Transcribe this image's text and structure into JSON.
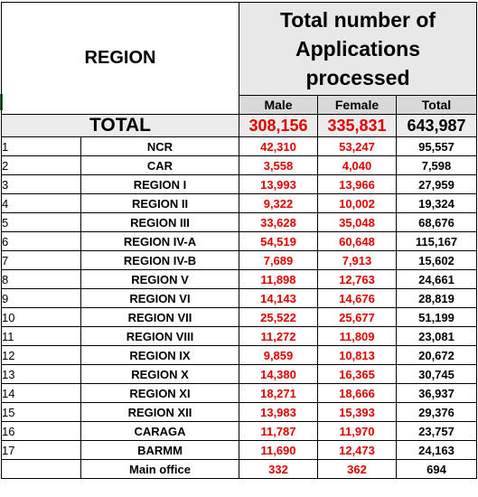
{
  "header": {
    "region_label": "REGION",
    "total_title_line1": "Total number of",
    "total_title_line2": "Applications",
    "total_title_line3": "processed",
    "col_male": "Male",
    "col_female": "Female",
    "col_total": "Total"
  },
  "totals": {
    "label": "TOTAL",
    "male": "308,156",
    "female": "335,831",
    "total": "643,987"
  },
  "rows": [
    {
      "no": "1",
      "region": "NCR",
      "male": "42,310",
      "female": "53,247",
      "total": "95,557"
    },
    {
      "no": "2",
      "region": "CAR",
      "male": "3,558",
      "female": "4,040",
      "total": "7,598"
    },
    {
      "no": "3",
      "region": "REGION I",
      "male": "13,993",
      "female": "13,966",
      "total": "27,959"
    },
    {
      "no": "4",
      "region": "REGION II",
      "male": "9,322",
      "female": "10,002",
      "total": "19,324"
    },
    {
      "no": "5",
      "region": "REGION III",
      "male": "33,628",
      "female": "35,048",
      "total": "68,676"
    },
    {
      "no": "6",
      "region": "REGION IV-A",
      "male": "54,519",
      "female": "60,648",
      "total": "115,167"
    },
    {
      "no": "7",
      "region": "REGION IV-B",
      "male": "7,689",
      "female": "7,913",
      "total": "15,602"
    },
    {
      "no": "8",
      "region": "REGION V",
      "male": "11,898",
      "female": "12,763",
      "total": "24,661"
    },
    {
      "no": "9",
      "region": "REGION VI",
      "male": "14,143",
      "female": "14,676",
      "total": "28,819"
    },
    {
      "no": "10",
      "region": "REGION VII",
      "male": "25,522",
      "female": "25,677",
      "total": "51,199"
    },
    {
      "no": "11",
      "region": "REGION VIII",
      "male": "11,272",
      "female": "11,809",
      "total": "23,081"
    },
    {
      "no": "12",
      "region": "REGION IX",
      "male": "9,859",
      "female": "10,813",
      "total": "20,672"
    },
    {
      "no": "13",
      "region": "REGION X",
      "male": "14,380",
      "female": "16,365",
      "total": "30,745"
    },
    {
      "no": "14",
      "region": "REGION XI",
      "male": "18,271",
      "female": "18,666",
      "total": "36,937"
    },
    {
      "no": "15",
      "region": "REGION XII",
      "male": "13,983",
      "female": "15,393",
      "total": "29,376"
    },
    {
      "no": "16",
      "region": "CARAGA",
      "male": "11,787",
      "female": "11,970",
      "total": "23,757"
    },
    {
      "no": "17",
      "region": "BARMM",
      "male": "11,690",
      "female": "12,473",
      "total": "24,163"
    },
    {
      "no": "",
      "region": "Main office",
      "male": "332",
      "female": "362",
      "total": "694"
    }
  ],
  "colors": {
    "value_red": "#e00000",
    "header_gray": "#d9d9d9",
    "title_gray": "#e8e8e8",
    "total_row_gray": "#ececec",
    "cell_marker_green": "#1e7b34"
  }
}
